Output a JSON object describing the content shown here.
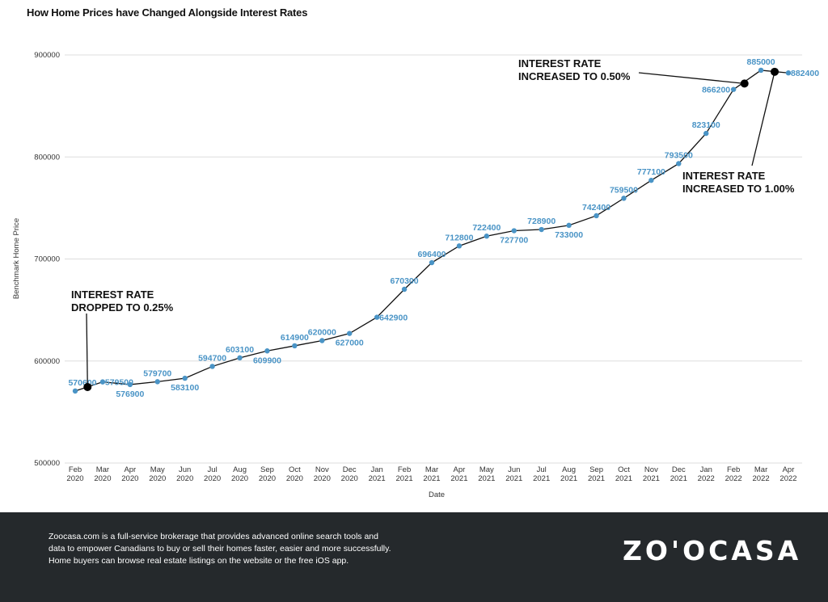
{
  "title": "How Home Prices have Changed Alongside Interest Rates",
  "chart_data": {
    "type": "line",
    "title": "How Home Prices have Changed Alongside Interest Rates",
    "xlabel": "Date",
    "ylabel": "Benchmark Home Price",
    "ylim": [
      500000,
      900000
    ],
    "yticks": [
      "900000",
      "800000",
      "700000",
      "600000",
      "500000"
    ],
    "grid": true,
    "categories": [
      [
        "Feb",
        "2020"
      ],
      [
        "Mar",
        "2020"
      ],
      [
        "Apr",
        "2020"
      ],
      [
        "May",
        "2020"
      ],
      [
        "Jun",
        "2020"
      ],
      [
        "Jul",
        "2020"
      ],
      [
        "Aug",
        "2020"
      ],
      [
        "Sep",
        "2020"
      ],
      [
        "Oct",
        "2020"
      ],
      [
        "Nov",
        "2020"
      ],
      [
        "Dec",
        "2020"
      ],
      [
        "Jan",
        "2021"
      ],
      [
        "Feb",
        "2021"
      ],
      [
        "Mar",
        "2021"
      ],
      [
        "Apr",
        "2021"
      ],
      [
        "May",
        "2021"
      ],
      [
        "Jun",
        "2021"
      ],
      [
        "Jul",
        "2021"
      ],
      [
        "Aug",
        "2021"
      ],
      [
        "Sep",
        "2021"
      ],
      [
        "Oct",
        "2021"
      ],
      [
        "Nov",
        "2021"
      ],
      [
        "Dec",
        "2021"
      ],
      [
        "Jan",
        "2022"
      ],
      [
        "Feb",
        "2022"
      ],
      [
        "Mar",
        "2022"
      ],
      [
        "Apr",
        "2022"
      ]
    ],
    "values": [
      570600,
      579500,
      576900,
      579700,
      583100,
      594700,
      603100,
      609900,
      614900,
      620000,
      627000,
      642900,
      670300,
      696400,
      712800,
      722400,
      727700,
      728900,
      733000,
      742400,
      759500,
      777100,
      793500,
      823100,
      866200,
      885000,
      882400
    ],
    "label_pos": [
      "left",
      "right",
      "below",
      "above",
      "below",
      "above",
      "above",
      "below",
      "above",
      "above",
      "below",
      "right",
      "above",
      "above",
      "above",
      "above",
      "below",
      "above",
      "below",
      "above",
      "above",
      "above",
      "above",
      "above",
      "left",
      "above",
      "right"
    ],
    "line_color": "#111111",
    "marker_color": "#4a94c6",
    "label_color": "#4a94c6",
    "events": [
      {
        "text_lines": [
          "INTEREST RATE",
          "DROPPED TO 0.25%"
        ],
        "x_index": 0.45,
        "y": 574500
      },
      {
        "text_lines": [
          "INTEREST RATE",
          "INCREASED TO 0.50%"
        ],
        "x_index": 24.4,
        "y": 872000
      },
      {
        "text_lines": [
          "INTEREST RATE",
          "INCREASED TO 1.00%"
        ],
        "x_index": 25.5,
        "y": 883500
      }
    ]
  },
  "footer": {
    "text": "Zoocasa.com is a full-service brokerage that provides advanced online search tools and\ndata to empower Canadians to buy or sell their homes faster, easier and more successfully.\nHome buyers can browse real estate listings on the website or the free iOS app.",
    "brand": "ZO'OCASA"
  }
}
